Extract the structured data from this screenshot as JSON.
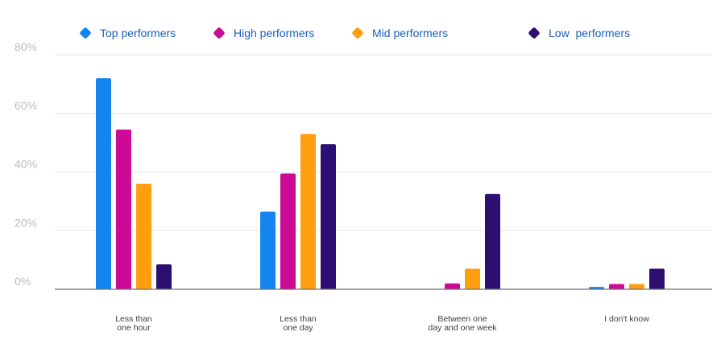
{
  "chart_data": {
    "type": "bar",
    "categories": [
      [
        "Less than",
        "one hour"
      ],
      [
        "Less than",
        "one day"
      ],
      [
        "Between one",
        "day and one week"
      ],
      [
        "I don't know"
      ]
    ],
    "series": [
      {
        "name": "Top performers",
        "color": "#1485ee",
        "values": [
          72,
          26.5,
          0,
          0.8
        ]
      },
      {
        "name": "High performers",
        "color": "#cc0a95",
        "values": [
          54.5,
          39.5,
          2,
          1.8
        ]
      },
      {
        "name": "Mid performers",
        "color": "#ff9f0f",
        "values": [
          36,
          53,
          7,
          1.8
        ]
      },
      {
        "name": "Low  performers",
        "color": "#2c0f70",
        "values": [
          8.5,
          49.5,
          32.5,
          7
        ]
      }
    ],
    "y_ticks": [
      "0%",
      "20%",
      "40%",
      "60%",
      "80%"
    ],
    "ylim": [
      0,
      80
    ],
    "grid": true,
    "legend_position": "top",
    "xlabel": "",
    "ylabel": ""
  }
}
